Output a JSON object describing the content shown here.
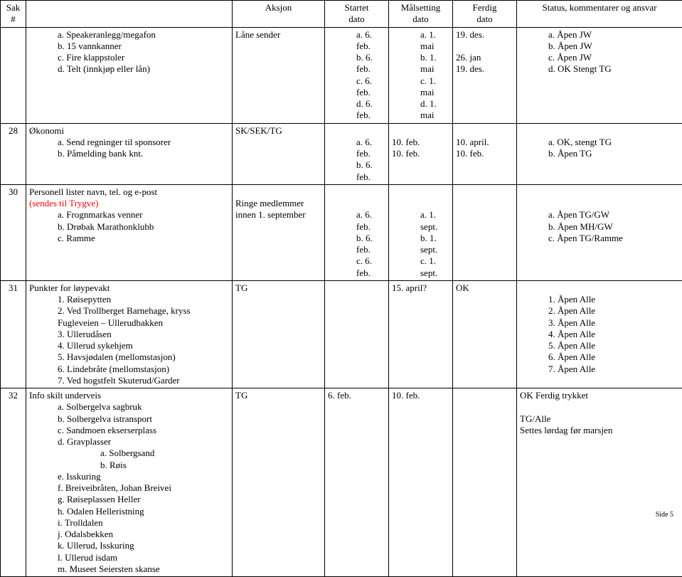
{
  "header": {
    "sak": "Sak\n#",
    "aksjon": "Aksjon",
    "startet": "Startet\ndato",
    "malsetting": "Målsetting\ndato",
    "ferdig": "Ferdig\ndato",
    "status": "Status, kommentarer og ansvar"
  },
  "rows": [
    {
      "sak": "",
      "desc": {
        "items_letter": [
          {
            "l": "a",
            "t": "Speakeranlegg/megafon"
          },
          {
            "l": "b",
            "t": "15 vannkanner"
          },
          {
            "l": "c",
            "t": "Fire klappstoler"
          },
          {
            "l": "d",
            "t": "Telt (innkjøp eller lån)"
          }
        ]
      },
      "aksjon": "Låne sender",
      "startet": {
        "items_letter": [
          {
            "l": "a",
            "t": "6. feb."
          },
          {
            "l": "b",
            "t": "6. feb."
          },
          {
            "l": "c",
            "t": "6. feb."
          },
          {
            "l": "d",
            "t": "6. feb."
          }
        ]
      },
      "mal": {
        "items_letter": [
          {
            "l": "a",
            "t": "1. mai"
          },
          {
            "l": "b",
            "t": "1. mai"
          },
          {
            "l": "c",
            "t": "1. mai"
          },
          {
            "l": "d",
            "t": "1. mai"
          }
        ]
      },
      "ferdig": {
        "lines": [
          "19. des.",
          "",
          "26. jan",
          "19. des."
        ]
      },
      "status": {
        "items_letter": [
          {
            "l": "a",
            "t": "Åpen JW"
          },
          {
            "l": "b",
            "t": "Åpen JW"
          },
          {
            "l": "c",
            "t": "Åpen JW"
          },
          {
            "l": "d",
            "t": "OK Stengt TG"
          }
        ]
      }
    },
    {
      "sak": "28",
      "desc": {
        "title": "Økonomi",
        "items_letter": [
          {
            "l": "a",
            "t": "Send regninger til sponsorer"
          },
          {
            "l": "b",
            "t": "Påmelding bank knt."
          }
        ]
      },
      "aksjon": "SK/SEK/TG",
      "startet": {
        "pre": " ",
        "items_letter": [
          {
            "l": "a",
            "t": "6. feb."
          },
          {
            "l": "b",
            "t": "6. feb."
          }
        ]
      },
      "mal": {
        "lines": [
          "",
          "10. feb.",
          "10. feb."
        ]
      },
      "ferdig": {
        "lines": [
          "",
          "10. april.",
          "10. feb."
        ]
      },
      "status": {
        "pre": " ",
        "items_letter": [
          {
            "l": "a",
            "t": "OK, stengt TG"
          },
          {
            "l": "b",
            "t": "Åpen TG"
          }
        ]
      }
    },
    {
      "sak": "30",
      "desc": {
        "title": "Personell lister navn, tel. og e-post",
        "red_line": "(sendes til Trygve)",
        "items_letter": [
          {
            "l": "a",
            "t": "Frognmarkas venner"
          },
          {
            "l": "b",
            "t": "Drøbak Marathonklubb"
          },
          {
            "l": "c",
            "t": "Ramme"
          }
        ]
      },
      "aksjon_lines": [
        "",
        "Ringe medlemmer",
        "innen 1. september"
      ],
      "startet": {
        "pre2": true,
        "items_letter": [
          {
            "l": "a",
            "t": "6. feb."
          },
          {
            "l": "b",
            "t": "6. feb."
          },
          {
            "l": "c",
            "t": "6. feb."
          }
        ]
      },
      "mal": {
        "pre2": true,
        "items_letter": [
          {
            "l": "a",
            "t": "1. sept."
          },
          {
            "l": "b",
            "t": "1. sept."
          },
          {
            "l": "c",
            "t": "1. sept."
          }
        ]
      },
      "ferdig": {
        "lines": [
          ""
        ]
      },
      "status": {
        "pre2": true,
        "items_letter": [
          {
            "l": "a",
            "t": "Åpen TG/GW"
          },
          {
            "l": "b",
            "t": "Åpen MH/GW"
          },
          {
            "l": "c",
            "t": "Åpen TG/Ramme"
          }
        ]
      }
    },
    {
      "sak": "31",
      "desc": {
        "title": "Punkter for løypevakt",
        "items_num": [
          {
            "n": "1",
            "t": "Røisepytten"
          },
          {
            "n": "2",
            "t": "Ved Trollberget Barnehage, kryss Fugleveien – Ullerudbakken"
          },
          {
            "n": "3",
            "t": "Ullerudåsen"
          },
          {
            "n": "4",
            "t": "Ullerud sykehjem"
          },
          {
            "n": "5",
            "t": "Havsjødalen (mellomstasjon)"
          },
          {
            "n": "6",
            "t": "Lindebråte (mellomstasjon)"
          },
          {
            "n": "7",
            "t": "Ved hogstfelt Skuterud/Garder"
          }
        ]
      },
      "aksjon": "TG",
      "startet": {
        "lines": [
          ""
        ]
      },
      "mal": {
        "lines": [
          "15. april?"
        ]
      },
      "ferdig": {
        "lines": [
          "OK"
        ]
      },
      "status": {
        "pre": " ",
        "items_num": [
          {
            "n": "1",
            "t": "Åpen Alle"
          },
          {
            "n": "2",
            "t": "Åpen Alle"
          },
          {
            "n": "3",
            "t": "Åpen Alle"
          },
          {
            "n": "4",
            "t": "Åpen Alle"
          },
          {
            "n": "5",
            "t": "Åpen Alle"
          },
          {
            "n": "6",
            "t": "Åpen Alle"
          },
          {
            "n": "7",
            "t": "Åpen Alle"
          }
        ]
      }
    },
    {
      "sak": "32",
      "desc": {
        "title": "Info skilt underveis",
        "items_letter": [
          {
            "l": "a",
            "t": "Solbergelva sagbruk"
          },
          {
            "l": "b",
            "t": "Solbergelva istransport"
          },
          {
            "l": "c",
            "t": "Sandmoen ekserserplass"
          },
          {
            "l": "d",
            "t": "Gravplasser",
            "sub": [
              {
                "l": "a",
                "t": "Solbergsand"
              },
              {
                "l": "b",
                "t": "Røis"
              }
            ]
          },
          {
            "l": "e",
            "t": "Isskuring"
          },
          {
            "l": "f",
            "t": "Breiveibråten, Johan Breivei"
          },
          {
            "l": "g",
            "t": "Røiseplassen Heller"
          },
          {
            "l": "h",
            "t": "Odalen Helleristning"
          },
          {
            "l": "i",
            "t": "Trolldalen"
          },
          {
            "l": "j",
            "t": "Odalsbekken"
          },
          {
            "l": "k",
            "t": "Ullerud, Isskuring"
          },
          {
            "l": "l",
            "t": "Ullerud isdam"
          },
          {
            "l": "m",
            "t": "Museet Seiersten skanse"
          }
        ]
      },
      "aksjon": "TG",
      "startet": {
        "lines": [
          "6. feb."
        ]
      },
      "mal": {
        "lines": [
          "10. feb."
        ]
      },
      "ferdig": {
        "lines": [
          ""
        ]
      },
      "status": {
        "lines": [
          "OK Ferdig trykket",
          "",
          "TG/Alle",
          "Settes lørdag før marsjen"
        ]
      }
    }
  ],
  "footer": "Side 5"
}
